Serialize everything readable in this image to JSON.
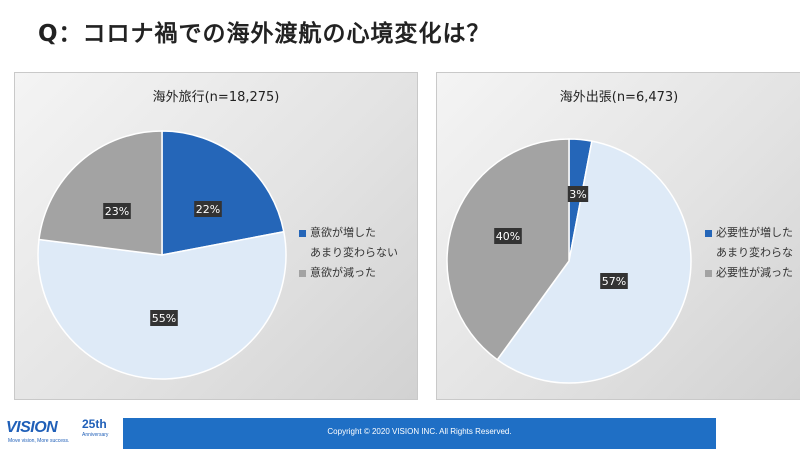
{
  "title": "Q：コロナ禍での海外渡航の心境変化は？",
  "chart_data": [
    {
      "type": "pie",
      "title": "海外旅行(n=18,275)",
      "categories": [
        "意欲が増した",
        "あまり変わらない",
        "意欲が減った"
      ],
      "values": [
        22,
        55,
        23
      ],
      "labels": [
        "22%",
        "55%",
        "23%"
      ],
      "colors": [
        "#2566b8",
        "#deeaf7",
        "#a3a3a3"
      ],
      "legend": "right"
    },
    {
      "type": "pie",
      "title": "海外出張(n=6,473)",
      "categories": [
        "必要性が増した",
        "あまり変わらない",
        "必要性が減った"
      ],
      "values": [
        3,
        57,
        40
      ],
      "labels": [
        "3%",
        "57%",
        "40%"
      ],
      "colors": [
        "#2566b8",
        "#deeaf7",
        "#a3a3a3"
      ],
      "legend": "right"
    }
  ],
  "legend1": [
    "意欲が増した",
    "あまり変わらない",
    "意欲が減った"
  ],
  "legend2": [
    "必要性が増した",
    "あまり変わらな",
    "必要性が減った"
  ],
  "footer": {
    "copyright": "Copyright © 2020 VISION INC. All Rights Reserved."
  },
  "logo": {
    "name": "VISION",
    "tagline": "Move vision, More success.",
    "anniversary": "25th",
    "anniversary_sub": "Anniversary"
  }
}
